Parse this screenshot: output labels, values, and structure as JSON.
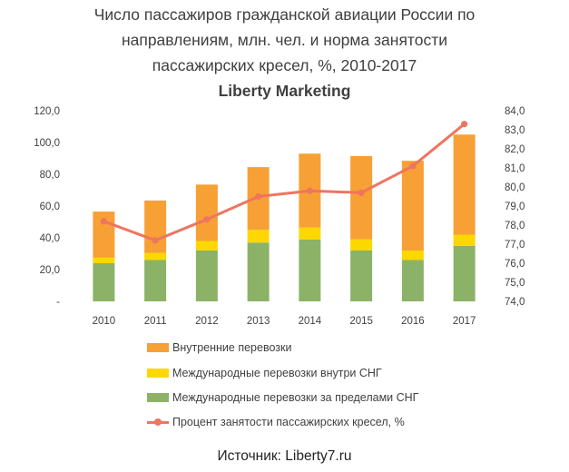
{
  "title_lines": [
    "Число пассажиров гражданской авиации России по",
    "направлениям, млн. чел. и норма занятости",
    "пассажирских кресел, %, 2010-2017"
  ],
  "subtitle": "Liberty Marketing",
  "source": "Источник: Liberty7.ru",
  "colors": {
    "domestic": "#F7A035",
    "intl_cis": "#FCD800",
    "intl_outside": "#8BB266",
    "load_factor": "#EE7560"
  },
  "chart_data": {
    "type": "bar",
    "stacked": true,
    "categories": [
      "2010",
      "2011",
      "2012",
      "2013",
      "2014",
      "2015",
      "2016",
      "2017"
    ],
    "series": [
      {
        "name": "Международные перевозки за пределами СНГ",
        "type": "bar",
        "values": [
          24,
          26,
          32,
          37,
          39,
          32,
          26,
          35
        ]
      },
      {
        "name": "Международные перевозки внутри СНГ",
        "type": "bar",
        "values": [
          3.5,
          4.5,
          6,
          8,
          7.5,
          7,
          6,
          7
        ]
      },
      {
        "name": "Внутренние перевозки",
        "type": "bar",
        "values": [
          29,
          33,
          35.5,
          39.5,
          46.5,
          52.5,
          56.5,
          63
        ]
      },
      {
        "name": "Процент занятости пассажирских кресел, %",
        "type": "line",
        "axis": "right",
        "values": [
          78.2,
          77.2,
          78.3,
          79.5,
          79.8,
          79.7,
          81.1,
          83.3
        ]
      }
    ],
    "y_left": {
      "min": 0,
      "max": 120,
      "ticks": [
        "-",
        "20,0",
        "40,0",
        "60,0",
        "80,0",
        "100,0",
        "120,0"
      ]
    },
    "y_right": {
      "min": 74,
      "max": 84,
      "ticks": [
        "74,0",
        "75,0",
        "76,0",
        "77,0",
        "78,0",
        "79,0",
        "80,0",
        "81,0",
        "82,0",
        "83,0",
        "84,0"
      ]
    },
    "grid": false,
    "legend_position": "bottom"
  }
}
